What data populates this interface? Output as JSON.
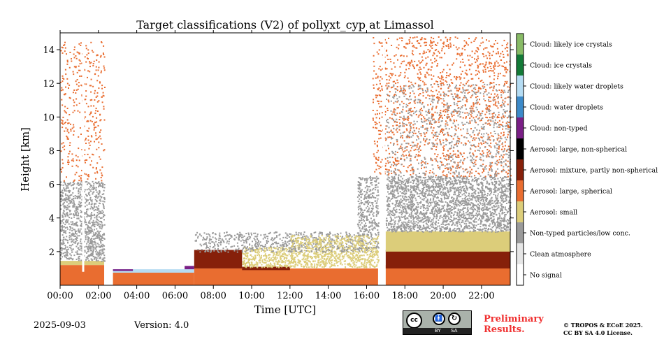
{
  "title": "Target classifications (V2) of pollyxt_cyp at Limassol",
  "footer": {
    "date": "2025-09-03",
    "version": "Version: 4.0",
    "preliminary": "Preliminary Results.",
    "copyright_line1": "© TROPOS & ECoE 2025.",
    "copyright_line2": "CC BY SA 4.0 License.",
    "license_badge": {
      "main": "cc",
      "by": "BY",
      "sa": "SA"
    }
  },
  "chart_data": {
    "type": "heatmap",
    "title": "Target classifications (V2) of pollyxt_cyp at Limassol",
    "xlabel": "Time [UTC]",
    "ylabel": "Height [km]",
    "xlim": [
      0,
      23.5
    ],
    "ylim": [
      0,
      15
    ],
    "xticks": [
      0,
      2,
      4,
      6,
      8,
      10,
      12,
      14,
      16,
      18,
      20,
      22
    ],
    "xtick_labels": [
      "00:00",
      "02:00",
      "04:00",
      "06:00",
      "08:00",
      "10:00",
      "12:00",
      "14:00",
      "16:00",
      "18:00",
      "20:00",
      "22:00"
    ],
    "yticks": [
      2,
      4,
      6,
      8,
      10,
      12,
      14
    ],
    "ytick_labels": [
      "2",
      "4",
      "6",
      "8",
      "10",
      "12",
      "14"
    ],
    "classes": [
      {
        "label": "Cloud: likely ice crystals",
        "color": "#88bb66"
      },
      {
        "label": "Cloud: ice crystals",
        "color": "#137a37"
      },
      {
        "label": "Cloud: likely water droplets",
        "color": "#b5dcf3"
      },
      {
        "label": "Cloud: water droplets",
        "color": "#3c8ac9"
      },
      {
        "label": "Cloud: non-typed",
        "color": "#7a1f86"
      },
      {
        "label": "Aerosol: large, non-spherical",
        "color": "#000000"
      },
      {
        "label": "Aerosol: mixture, partly non-spherical",
        "color": "#86200a"
      },
      {
        "label": "Aerosol: large, spherical",
        "color": "#e96d30"
      },
      {
        "label": "Aerosol: small",
        "color": "#dccd7a"
      },
      {
        "label": "Non-typed particles/low conc.",
        "color": "#9a9a9a"
      },
      {
        "label": "Clean atmosphere",
        "color": "#e6e6e6"
      },
      {
        "label": "No signal",
        "color": "#ffffff"
      }
    ],
    "regions": [
      {
        "t": [
          0,
          2.3
        ],
        "h": [
          0,
          1.2
        ],
        "class": 7
      },
      {
        "t": [
          0,
          2.3
        ],
        "h": [
          1.2,
          1.45
        ],
        "class": 8
      },
      {
        "t": [
          0,
          2.3
        ],
        "h": [
          1.45,
          6.2
        ],
        "class": 9,
        "speckle": 0.55
      },
      {
        "t": [
          0,
          2.3
        ],
        "h": [
          6.2,
          14.5
        ],
        "class": 7,
        "speckle": 0.12
      },
      {
        "t": [
          2.7,
          7.0
        ],
        "h": [
          0,
          0.75
        ],
        "class": 7
      },
      {
        "t": [
          2.7,
          7.0
        ],
        "h": [
          0.75,
          0.95
        ],
        "class": 2
      },
      {
        "t": [
          6.5,
          7.0
        ],
        "h": [
          0.95,
          1.15
        ],
        "class": 4
      },
      {
        "t": [
          2.7,
          3.8
        ],
        "h": [
          0.85,
          0.95
        ],
        "class": 4
      },
      {
        "t": [
          7.0,
          16.6
        ],
        "h": [
          0,
          1.0
        ],
        "class": 7
      },
      {
        "t": [
          7.0,
          9.5
        ],
        "h": [
          1.0,
          2.1
        ],
        "class": 6
      },
      {
        "t": [
          9.5,
          12.0
        ],
        "h": [
          0.9,
          1.1
        ],
        "class": 6
      },
      {
        "t": [
          9.5,
          16.6
        ],
        "h": [
          1.1,
          2.3
        ],
        "class": 8,
        "speckle": 0.7
      },
      {
        "t": [
          7.0,
          16.6
        ],
        "h": [
          2.0,
          3.2
        ],
        "class": 9,
        "speckle": 0.35
      },
      {
        "t": [
          12.0,
          16.6
        ],
        "h": [
          2.3,
          3.0
        ],
        "class": 8,
        "speckle": 0.5
      },
      {
        "t": [
          15.5,
          16.6
        ],
        "h": [
          3.0,
          6.5
        ],
        "class": 9,
        "speckle": 0.5
      },
      {
        "t": [
          17.0,
          23.5
        ],
        "h": [
          0,
          1.2
        ],
        "class": 7
      },
      {
        "t": [
          17.0,
          23.5
        ],
        "h": [
          1.0,
          2.1
        ],
        "class": 6
      },
      {
        "t": [
          17.0,
          23.5
        ],
        "h": [
          2.0,
          3.2
        ],
        "class": 8
      },
      {
        "t": [
          17.0,
          23.5
        ],
        "h": [
          3.2,
          6.5
        ],
        "class": 9,
        "speckle": 0.65
      },
      {
        "t": [
          16.3,
          23.5
        ],
        "h": [
          6.5,
          14.8
        ],
        "class": 7,
        "speckle": 0.15
      },
      {
        "t": [
          17.0,
          23.5
        ],
        "h": [
          6.5,
          12
        ],
        "class": 9,
        "speckle": 0.12
      }
    ]
  }
}
